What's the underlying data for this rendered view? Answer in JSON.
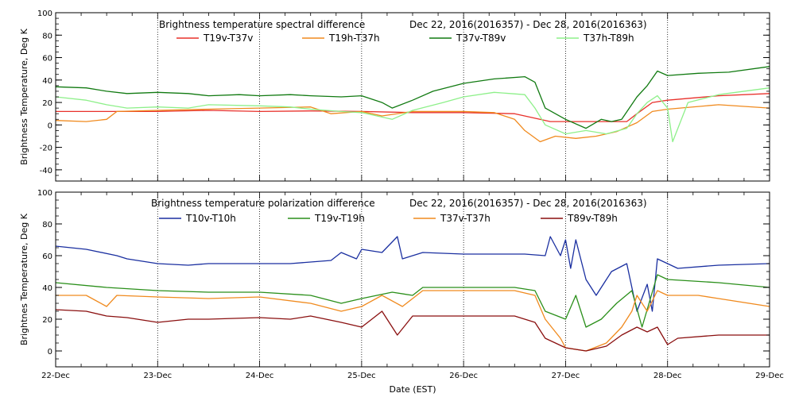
{
  "chart_data": [
    {
      "type": "line",
      "title": "Brightness temperature spectral difference",
      "date_range": "Dec 22, 2016(2016357)  -  Dec 28, 2016(2016363)",
      "ylabel": "Brightness Temperature, Deg K",
      "xlabel": "",
      "ylim": [
        -50,
        100
      ],
      "yticks": [
        100,
        80,
        60,
        40,
        20,
        0,
        -20,
        -40
      ],
      "xlim": [
        0,
        7
      ],
      "grid": true,
      "series": [
        {
          "name": "T19v-T37v",
          "color": "#e8302a",
          "points": [
            [
              0,
              12
            ],
            [
              0.5,
              12
            ],
            [
              1,
              12
            ],
            [
              1.5,
              13
            ],
            [
              2,
              12
            ],
            [
              2.5,
              12.5
            ],
            [
              3,
              12
            ],
            [
              3.5,
              11
            ],
            [
              4,
              11
            ],
            [
              4.5,
              10
            ],
            [
              4.7,
              6
            ],
            [
              4.85,
              3
            ],
            [
              5,
              3
            ],
            [
              5.3,
              3
            ],
            [
              5.6,
              3
            ],
            [
              5.7,
              10
            ],
            [
              5.85,
              20
            ],
            [
              6,
              22
            ],
            [
              6.5,
              26
            ],
            [
              7,
              28
            ]
          ]
        },
        {
          "name": "T19h-T37h",
          "color": "#f08a1e",
          "points": [
            [
              0,
              4
            ],
            [
              0.3,
              3
            ],
            [
              0.5,
              5
            ],
            [
              0.6,
              12
            ],
            [
              1,
              13
            ],
            [
              1.5,
              14
            ],
            [
              2,
              15
            ],
            [
              2.5,
              16
            ],
            [
              2.7,
              10
            ],
            [
              3,
              12
            ],
            [
              3.2,
              8
            ],
            [
              3.5,
              12
            ],
            [
              4,
              12
            ],
            [
              4.3,
              11
            ],
            [
              4.5,
              5
            ],
            [
              4.6,
              -5
            ],
            [
              4.75,
              -15
            ],
            [
              4.9,
              -10
            ],
            [
              5.1,
              -12
            ],
            [
              5.3,
              -10
            ],
            [
              5.5,
              -6
            ],
            [
              5.7,
              2
            ],
            [
              5.85,
              12
            ],
            [
              6,
              14
            ],
            [
              6.5,
              18
            ],
            [
              7,
              15
            ]
          ]
        },
        {
          "name": "T37v-T89v",
          "color": "#117a11",
          "points": [
            [
              0,
              34
            ],
            [
              0.3,
              33
            ],
            [
              0.5,
              30
            ],
            [
              0.7,
              28
            ],
            [
              1,
              29
            ],
            [
              1.3,
              28
            ],
            [
              1.5,
              26
            ],
            [
              1.8,
              27
            ],
            [
              2,
              26
            ],
            [
              2.3,
              27
            ],
            [
              2.5,
              26
            ],
            [
              2.8,
              25
            ],
            [
              3,
              26
            ],
            [
              3.2,
              20
            ],
            [
              3.3,
              15
            ],
            [
              3.5,
              22
            ],
            [
              3.7,
              30
            ],
            [
              4,
              37
            ],
            [
              4.3,
              41
            ],
            [
              4.6,
              43
            ],
            [
              4.7,
              38
            ],
            [
              4.8,
              15
            ],
            [
              5,
              5
            ],
            [
              5.2,
              -3
            ],
            [
              5.35,
              5
            ],
            [
              5.45,
              3
            ],
            [
              5.55,
              5
            ],
            [
              5.7,
              25
            ],
            [
              5.8,
              35
            ],
            [
              5.9,
              48
            ],
            [
              6,
              44
            ],
            [
              6.3,
              46
            ],
            [
              6.6,
              47
            ],
            [
              7,
              52
            ]
          ]
        },
        {
          "name": "T37h-T89h",
          "color": "#8ef08a",
          "points": [
            [
              0,
              25
            ],
            [
              0.3,
              22
            ],
            [
              0.5,
              18
            ],
            [
              0.7,
              15
            ],
            [
              1,
              16
            ],
            [
              1.3,
              15
            ],
            [
              1.5,
              18
            ],
            [
              2,
              17
            ],
            [
              2.3,
              16
            ],
            [
              2.5,
              14
            ],
            [
              2.8,
              12
            ],
            [
              3,
              11
            ],
            [
              3.3,
              5
            ],
            [
              3.5,
              13
            ],
            [
              3.8,
              20
            ],
            [
              4,
              25
            ],
            [
              4.3,
              29
            ],
            [
              4.6,
              27
            ],
            [
              4.7,
              15
            ],
            [
              4.8,
              0
            ],
            [
              5,
              -8
            ],
            [
              5.2,
              -5
            ],
            [
              5.4,
              -8
            ],
            [
              5.6,
              -3
            ],
            [
              5.7,
              10
            ],
            [
              5.8,
              20
            ],
            [
              5.9,
              26
            ],
            [
              6,
              15
            ],
            [
              6.05,
              -15
            ],
            [
              6.2,
              20
            ],
            [
              6.5,
              27
            ],
            [
              7,
              33
            ]
          ]
        }
      ]
    },
    {
      "type": "line",
      "title": "Brightness temperature polarization difference",
      "date_range": "Dec 22, 2016(2016357)  -  Dec 28, 2016(2016363)",
      "ylabel": "Brightnes Temperature, Deg K",
      "xlabel": "Date (EST)",
      "ylim": [
        -10,
        100
      ],
      "yticks": [
        100,
        80,
        60,
        40,
        20,
        0
      ],
      "xlim": [
        0,
        7
      ],
      "xticks": [
        "22-Dec",
        "23-Dec",
        "24-Dec",
        "25-Dec",
        "26-Dec",
        "27-Dec",
        "28-Dec",
        "29-Dec"
      ],
      "grid": true,
      "series": [
        {
          "name": "T10v-T10h",
          "color": "#1a2fa0",
          "points": [
            [
              0,
              66
            ],
            [
              0.3,
              64
            ],
            [
              0.6,
              60
            ],
            [
              0.7,
              58
            ],
            [
              1,
              55
            ],
            [
              1.3,
              54
            ],
            [
              1.5,
              55
            ],
            [
              2,
              55
            ],
            [
              2.3,
              55
            ],
            [
              2.5,
              56
            ],
            [
              2.7,
              57
            ],
            [
              2.8,
              62
            ],
            [
              2.95,
              58
            ],
            [
              3,
              64
            ],
            [
              3.2,
              62
            ],
            [
              3.35,
              72
            ],
            [
              3.4,
              58
            ],
            [
              3.6,
              62
            ],
            [
              4,
              61
            ],
            [
              4.3,
              61
            ],
            [
              4.6,
              61
            ],
            [
              4.8,
              60
            ],
            [
              4.85,
              72
            ],
            [
              4.95,
              60
            ],
            [
              5,
              70
            ],
            [
              5.05,
              52
            ],
            [
              5.1,
              70
            ],
            [
              5.2,
              45
            ],
            [
              5.3,
              35
            ],
            [
              5.45,
              50
            ],
            [
              5.6,
              55
            ],
            [
              5.7,
              25
            ],
            [
              5.8,
              42
            ],
            [
              5.85,
              25
            ],
            [
              5.9,
              58
            ],
            [
              6,
              55
            ],
            [
              6.1,
              52
            ],
            [
              6.5,
              54
            ],
            [
              7,
              55
            ]
          ]
        },
        {
          "name": "T19v-T19h",
          "color": "#2a8f1a",
          "points": [
            [
              0,
              43
            ],
            [
              0.5,
              40
            ],
            [
              1,
              38
            ],
            [
              1.5,
              37
            ],
            [
              2,
              37
            ],
            [
              2.5,
              35
            ],
            [
              2.8,
              30
            ],
            [
              3,
              33
            ],
            [
              3.3,
              37
            ],
            [
              3.5,
              35
            ],
            [
              3.6,
              40
            ],
            [
              4,
              40
            ],
            [
              4.5,
              40
            ],
            [
              4.7,
              38
            ],
            [
              4.8,
              25
            ],
            [
              5,
              20
            ],
            [
              5.1,
              35
            ],
            [
              5.2,
              15
            ],
            [
              5.35,
              20
            ],
            [
              5.5,
              30
            ],
            [
              5.65,
              38
            ],
            [
              5.75,
              15
            ],
            [
              5.9,
              48
            ],
            [
              6,
              45
            ],
            [
              6.5,
              43
            ],
            [
              7,
              40
            ]
          ]
        },
        {
          "name": "T37v-T37h",
          "color": "#f08a1e",
          "points": [
            [
              0,
              35
            ],
            [
              0.3,
              35
            ],
            [
              0.5,
              28
            ],
            [
              0.6,
              35
            ],
            [
              1,
              34
            ],
            [
              1.5,
              33
            ],
            [
              2,
              34
            ],
            [
              2.5,
              30
            ],
            [
              2.8,
              25
            ],
            [
              3,
              28
            ],
            [
              3.2,
              35
            ],
            [
              3.4,
              28
            ],
            [
              3.6,
              38
            ],
            [
              4,
              38
            ],
            [
              4.5,
              38
            ],
            [
              4.7,
              35
            ],
            [
              4.8,
              20
            ],
            [
              4.95,
              8
            ],
            [
              5,
              2
            ],
            [
              5.2,
              0
            ],
            [
              5.4,
              5
            ],
            [
              5.55,
              15
            ],
            [
              5.65,
              25
            ],
            [
              5.7,
              35
            ],
            [
              5.8,
              25
            ],
            [
              5.9,
              38
            ],
            [
              6,
              35
            ],
            [
              6.3,
              35
            ],
            [
              6.5,
              33
            ],
            [
              7,
              28
            ]
          ]
        },
        {
          "name": "T89v-T89h",
          "color": "#8a0f0f",
          "points": [
            [
              0,
              26
            ],
            [
              0.3,
              25
            ],
            [
              0.5,
              22
            ],
            [
              0.7,
              21
            ],
            [
              1,
              18
            ],
            [
              1.3,
              20
            ],
            [
              1.5,
              20
            ],
            [
              2,
              21
            ],
            [
              2.3,
              20
            ],
            [
              2.5,
              22
            ],
            [
              2.8,
              18
            ],
            [
              3,
              15
            ],
            [
              3.2,
              25
            ],
            [
              3.35,
              10
            ],
            [
              3.5,
              22
            ],
            [
              4,
              22
            ],
            [
              4.5,
              22
            ],
            [
              4.7,
              18
            ],
            [
              4.8,
              8
            ],
            [
              5,
              2
            ],
            [
              5.2,
              0
            ],
            [
              5.4,
              3
            ],
            [
              5.55,
              10
            ],
            [
              5.7,
              15
            ],
            [
              5.8,
              12
            ],
            [
              5.9,
              15
            ],
            [
              6,
              4
            ],
            [
              6.1,
              8
            ],
            [
              6.5,
              10
            ],
            [
              7,
              10
            ]
          ]
        }
      ]
    }
  ]
}
